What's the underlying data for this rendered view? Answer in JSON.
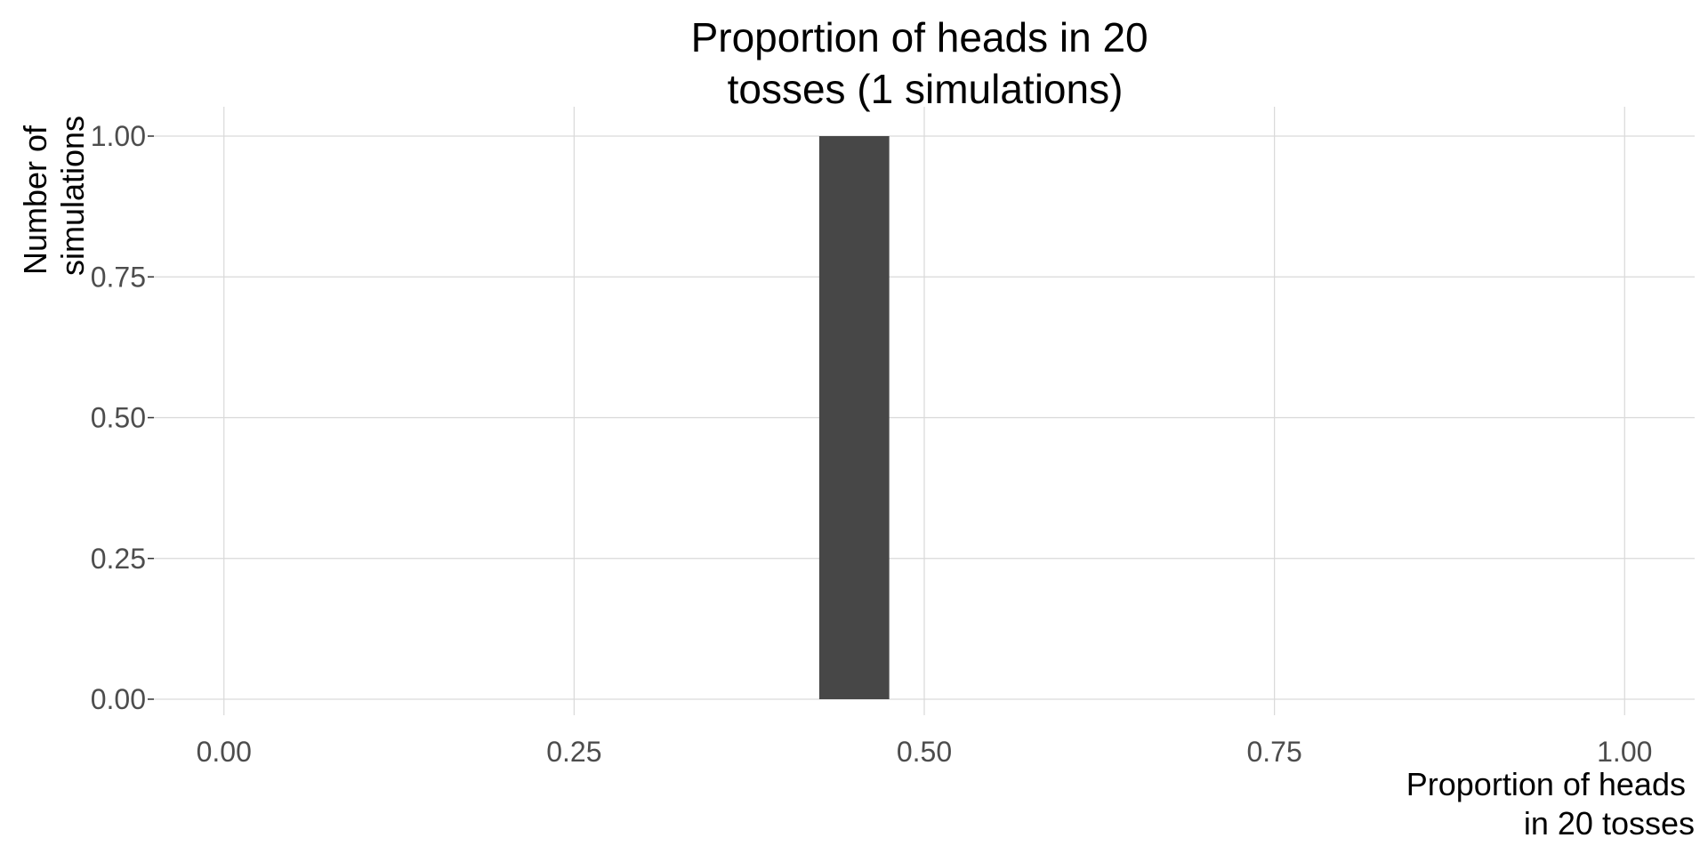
{
  "chart_data": {
    "type": "bar",
    "title_lines": [
      "Proportion of heads in 20",
      "tosses (1 simulations)"
    ],
    "xlabel_lines": [
      "Proportion of heads",
      "in 20 tosses"
    ],
    "ylabel_lines": [
      "Number of",
      "simulations"
    ],
    "xlim": [
      -0.05,
      1.05
    ],
    "ylim": [
      0,
      1
    ],
    "x_ticks": [
      0,
      0.25,
      0.5,
      0.75,
      1
    ],
    "x_tick_labels": [
      "0.00",
      "0.25",
      "0.50",
      "0.75",
      "1.00"
    ],
    "y_ticks": [
      0,
      0.25,
      0.5,
      0.75,
      1
    ],
    "y_tick_labels": [
      "0.00",
      "0.25",
      "0.50",
      "0.75",
      "1.00"
    ],
    "bars": [
      {
        "x_start": 0.425,
        "x_end": 0.475,
        "count": 1
      }
    ],
    "bar_color": "#474747",
    "grid": true,
    "legend": "none"
  }
}
